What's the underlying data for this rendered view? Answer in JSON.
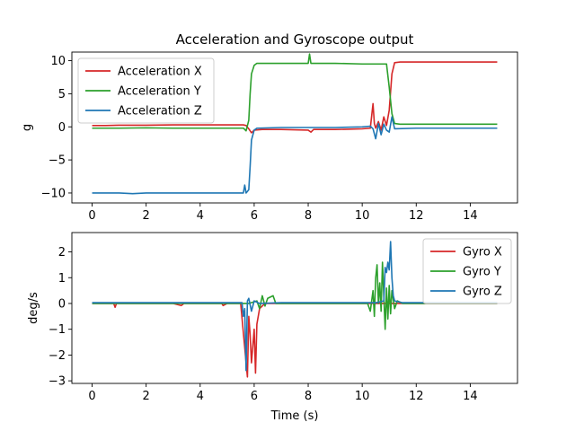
{
  "figure_title": "Acceleration and Gyroscope output",
  "colors": {
    "x": "#d62728",
    "y": "#2ca02c",
    "z": "#1f77b4"
  },
  "chart_data": [
    {
      "type": "line",
      "title": "Acceleration and Gyroscope output",
      "xlabel": "",
      "ylabel": "g",
      "xlim": [
        -0.75,
        15.75
      ],
      "ylim": [
        -11.5,
        11.3
      ],
      "xticks": [
        0,
        2,
        4,
        6,
        8,
        10,
        12,
        14
      ],
      "yticks": [
        -10,
        -5,
        0,
        5,
        10
      ],
      "grid": false,
      "legend": "upper-left",
      "series": [
        {
          "name": "Acceleration X",
          "color": "#d62728",
          "points": [
            [
              0,
              0.2
            ],
            [
              0.5,
              0.2
            ],
            [
              1,
              0.25
            ],
            [
              2,
              0.25
            ],
            [
              3,
              0.3
            ],
            [
              4,
              0.3
            ],
            [
              5,
              0.3
            ],
            [
              5.6,
              0.3
            ],
            [
              5.7,
              0.2
            ],
            [
              5.8,
              -0.3
            ],
            [
              5.9,
              -0.9
            ],
            [
              6.0,
              -0.5
            ],
            [
              6.3,
              -0.4
            ],
            [
              7,
              -0.4
            ],
            [
              8,
              -0.5
            ],
            [
              8.1,
              -0.8
            ],
            [
              8.2,
              -0.4
            ],
            [
              9,
              -0.4
            ],
            [
              10,
              -0.3
            ],
            [
              10.3,
              -0.2
            ],
            [
              10.4,
              3.5
            ],
            [
              10.45,
              0.5
            ],
            [
              10.5,
              -0.2
            ],
            [
              10.6,
              0.8
            ],
            [
              10.7,
              -0.5
            ],
            [
              10.8,
              1.5
            ],
            [
              10.9,
              0.2
            ],
            [
              11.0,
              2.5
            ],
            [
              11.1,
              8.0
            ],
            [
              11.2,
              9.7
            ],
            [
              11.4,
              9.8
            ],
            [
              12,
              9.8
            ],
            [
              13,
              9.8
            ],
            [
              14,
              9.8
            ],
            [
              15,
              9.8
            ]
          ]
        },
        {
          "name": "Acceleration Y",
          "color": "#2ca02c",
          "points": [
            [
              0,
              -0.2
            ],
            [
              1,
              -0.2
            ],
            [
              2,
              -0.15
            ],
            [
              3,
              -0.2
            ],
            [
              4,
              -0.2
            ],
            [
              5,
              -0.2
            ],
            [
              5.6,
              -0.2
            ],
            [
              5.7,
              -0.6
            ],
            [
              5.8,
              1.0
            ],
            [
              5.85,
              5.0
            ],
            [
              5.9,
              8.0
            ],
            [
              6.0,
              9.3
            ],
            [
              6.1,
              9.6
            ],
            [
              7,
              9.6
            ],
            [
              8,
              9.6
            ],
            [
              8.05,
              11.0
            ],
            [
              8.1,
              9.6
            ],
            [
              9,
              9.6
            ],
            [
              10,
              9.5
            ],
            [
              10.8,
              9.5
            ],
            [
              10.9,
              9.5
            ],
            [
              11.0,
              6.0
            ],
            [
              11.1,
              2.0
            ],
            [
              11.2,
              0.5
            ],
            [
              11.4,
              0.4
            ],
            [
              12,
              0.4
            ],
            [
              13,
              0.4
            ],
            [
              14,
              0.4
            ],
            [
              15,
              0.4
            ]
          ]
        },
        {
          "name": "Acceleration Z",
          "color": "#1f77b4",
          "points": [
            [
              0,
              -10.0
            ],
            [
              1,
              -10.0
            ],
            [
              1.5,
              -10.1
            ],
            [
              2,
              -10.0
            ],
            [
              3,
              -10.0
            ],
            [
              4,
              -10.0
            ],
            [
              5,
              -10.0
            ],
            [
              5.6,
              -10.0
            ],
            [
              5.65,
              -8.8
            ],
            [
              5.7,
              -10.0
            ],
            [
              5.8,
              -9.5
            ],
            [
              5.85,
              -6.0
            ],
            [
              5.9,
              -2.0
            ],
            [
              6.0,
              -0.5
            ],
            [
              6.1,
              -0.2
            ],
            [
              7,
              -0.1
            ],
            [
              8,
              -0.1
            ],
            [
              9,
              -0.1
            ],
            [
              10,
              0.0
            ],
            [
              10.3,
              0.1
            ],
            [
              10.4,
              -0.3
            ],
            [
              10.5,
              -1.8
            ],
            [
              10.6,
              0.5
            ],
            [
              10.7,
              -1.2
            ],
            [
              10.8,
              0.4
            ],
            [
              10.9,
              -0.5
            ],
            [
              11.0,
              -0.8
            ],
            [
              11.1,
              1.5
            ],
            [
              11.2,
              -0.3
            ],
            [
              12,
              -0.2
            ],
            [
              13,
              -0.2
            ],
            [
              14,
              -0.2
            ],
            [
              15,
              -0.2
            ]
          ]
        }
      ]
    },
    {
      "type": "line",
      "title": "",
      "xlabel": "Time (s)",
      "ylabel": "deg/s",
      "xlim": [
        -0.75,
        15.75
      ],
      "ylim": [
        -3.1,
        2.75
      ],
      "xticks": [
        0,
        2,
        4,
        6,
        8,
        10,
        12,
        14
      ],
      "yticks": [
        -3,
        -2,
        -1,
        0,
        1,
        2
      ],
      "grid": false,
      "legend": "upper-right",
      "series": [
        {
          "name": "Gyro X",
          "color": "#d62728",
          "points": [
            [
              0,
              0.0
            ],
            [
              0.8,
              0.0
            ],
            [
              0.85,
              -0.15
            ],
            [
              0.9,
              0.0
            ],
            [
              2,
              0.0
            ],
            [
              3,
              0.0
            ],
            [
              3.3,
              -0.08
            ],
            [
              3.4,
              0.0
            ],
            [
              4.8,
              0.0
            ],
            [
              4.85,
              -0.08
            ],
            [
              5.0,
              0.0
            ],
            [
              5.5,
              0.0
            ],
            [
              5.75,
              -2.85
            ],
            [
              5.8,
              -0.5
            ],
            [
              5.85,
              -1.2
            ],
            [
              5.9,
              -2.3
            ],
            [
              6.0,
              -1.0
            ],
            [
              6.05,
              -2.7
            ],
            [
              6.1,
              -0.8
            ],
            [
              6.2,
              -0.2
            ],
            [
              6.4,
              0.0
            ],
            [
              7,
              0.0
            ],
            [
              8,
              0.0
            ],
            [
              9,
              0.0
            ],
            [
              10,
              0.0
            ],
            [
              10.5,
              0.0
            ],
            [
              11,
              0.0
            ],
            [
              12,
              0.0
            ],
            [
              13,
              0.0
            ],
            [
              14,
              0.0
            ],
            [
              15,
              0.0
            ]
          ]
        },
        {
          "name": "Gyro Y",
          "color": "#2ca02c",
          "points": [
            [
              0,
              0.0
            ],
            [
              2,
              0.0
            ],
            [
              4,
              0.0
            ],
            [
              5.8,
              0.0
            ],
            [
              6.1,
              0.1
            ],
            [
              6.2,
              -0.2
            ],
            [
              6.3,
              0.3
            ],
            [
              6.4,
              -0.1
            ],
            [
              6.5,
              0.2
            ],
            [
              6.7,
              0.3
            ],
            [
              6.8,
              0.0
            ],
            [
              7,
              0.0
            ],
            [
              8,
              0.0
            ],
            [
              9,
              0.0
            ],
            [
              10.2,
              0.0
            ],
            [
              10.3,
              -0.3
            ],
            [
              10.4,
              0.5
            ],
            [
              10.45,
              -0.5
            ],
            [
              10.5,
              1.0
            ],
            [
              10.55,
              1.5
            ],
            [
              10.6,
              0.0
            ],
            [
              10.65,
              0.8
            ],
            [
              10.7,
              -0.3
            ],
            [
              10.75,
              1.6
            ],
            [
              10.8,
              0.3
            ],
            [
              10.85,
              -1.0
            ],
            [
              10.9,
              0.6
            ],
            [
              10.95,
              -0.6
            ],
            [
              11.0,
              0.7
            ],
            [
              11.05,
              -0.4
            ],
            [
              11.1,
              0.5
            ],
            [
              11.2,
              -0.2
            ],
            [
              11.3,
              0.1
            ],
            [
              11.5,
              0.0
            ],
            [
              12,
              0.0
            ],
            [
              13,
              0.0
            ],
            [
              14,
              0.0
            ],
            [
              15,
              0.0
            ]
          ]
        },
        {
          "name": "Gyro Z",
          "color": "#1f77b4",
          "points": [
            [
              0,
              0.03
            ],
            [
              1,
              0.03
            ],
            [
              2,
              0.03
            ],
            [
              3,
              0.03
            ],
            [
              4,
              0.03
            ],
            [
              5,
              0.03
            ],
            [
              5.55,
              0.03
            ],
            [
              5.6,
              -0.5
            ],
            [
              5.65,
              -0.2
            ],
            [
              5.7,
              -2.6
            ],
            [
              5.75,
              0.1
            ],
            [
              5.8,
              0.2
            ],
            [
              5.9,
              -0.3
            ],
            [
              6.0,
              0.1
            ],
            [
              6.2,
              0.0
            ],
            [
              7,
              0.03
            ],
            [
              8,
              0.03
            ],
            [
              9,
              0.03
            ],
            [
              10,
              0.03
            ],
            [
              10.5,
              0.03
            ],
            [
              10.8,
              0.1
            ],
            [
              10.85,
              1.4
            ],
            [
              10.9,
              1.2
            ],
            [
              10.95,
              1.6
            ],
            [
              11.0,
              1.3
            ],
            [
              11.05,
              2.4
            ],
            [
              11.1,
              1.0
            ],
            [
              11.15,
              0.3
            ],
            [
              11.2,
              0.1
            ],
            [
              11.5,
              0.03
            ],
            [
              12,
              0.03
            ],
            [
              13,
              0.03
            ],
            [
              14,
              0.03
            ],
            [
              15,
              0.03
            ]
          ]
        }
      ]
    }
  ]
}
